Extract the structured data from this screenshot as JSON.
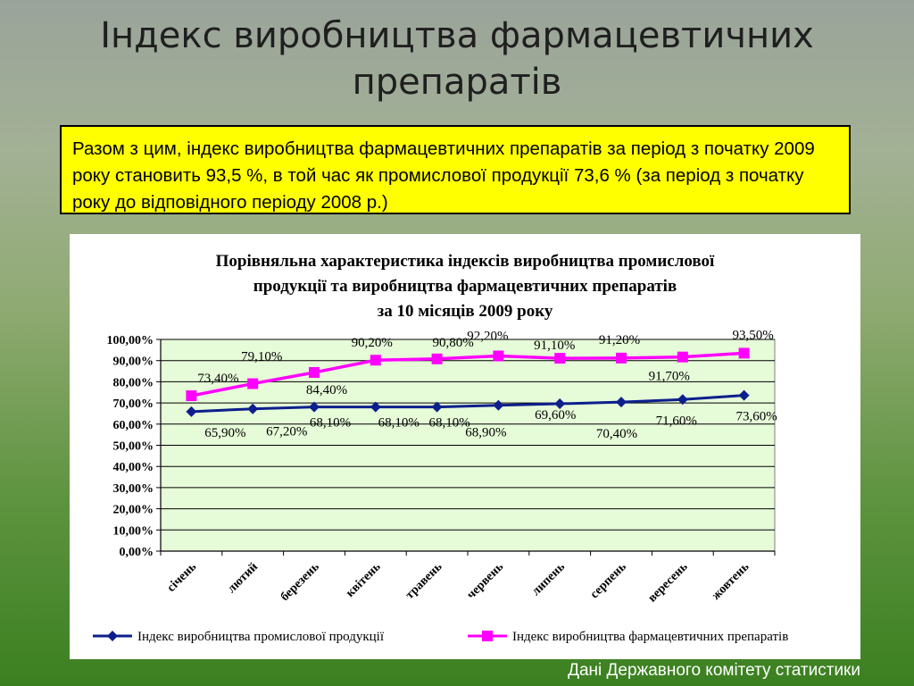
{
  "slide": {
    "title_line1": "Індекс виробництва фармацевтичних",
    "title_line2": "препаратів",
    "note": "Разом з цим, індекс виробництва фармацевтичних препаратів за період з початку 2009 року становить 93,5 %, в той час як промислової продукції 73,6 % (за період з початку року до відповідного періоду 2008 р.)",
    "source": "Дані Державного комітету статистики"
  },
  "chart_data": {
    "type": "line",
    "title_lines": [
      "Порівняльна характеристика індексів виробництва промислової",
      "продукції та виробництва фармацевтичних препаратів",
      "за 10 місяців 2009 року"
    ],
    "categories": [
      "січень",
      "лютий",
      "березень",
      "квітень",
      "травень",
      "червень",
      "липень",
      "серпень",
      "вересень",
      "жовтень"
    ],
    "ylim": [
      0,
      100
    ],
    "ytick_labels": [
      "0,00%",
      "10,00%",
      "20,00%",
      "30,00%",
      "40,00%",
      "50,00%",
      "60,00%",
      "70,00%",
      "80,00%",
      "90,00%",
      "100,00%"
    ],
    "grid": true,
    "legend_position": "bottom",
    "series": [
      {
        "name": "Індекс виробництва промислової продукції",
        "color": "#0d1f8c",
        "marker": "diamond",
        "values": [
          65.9,
          67.2,
          68.1,
          68.1,
          68.1,
          68.9,
          69.6,
          70.4,
          71.6,
          73.6
        ],
        "labels": [
          "65,90%",
          "67,20%",
          "68,10%",
          "68,10%",
          "68,10%",
          "68,90%",
          "69,60%",
          "70,40%",
          "71,60%",
          "73,60%"
        ]
      },
      {
        "name": "Індекс виробництва фармацевтичних препаратів",
        "color": "#ff00ff",
        "marker": "square",
        "values": [
          73.4,
          79.1,
          84.4,
          90.2,
          90.8,
          92.2,
          91.1,
          91.2,
          91.7,
          93.5
        ],
        "labels": [
          "73,40%",
          "79,10%",
          "84,40%",
          "90,20%",
          "90,80%",
          "92,20%",
          "91,10%",
          "91,20%",
          "91,70%",
          "93,50%"
        ]
      }
    ],
    "plot_fill": "#e6fbd8"
  }
}
